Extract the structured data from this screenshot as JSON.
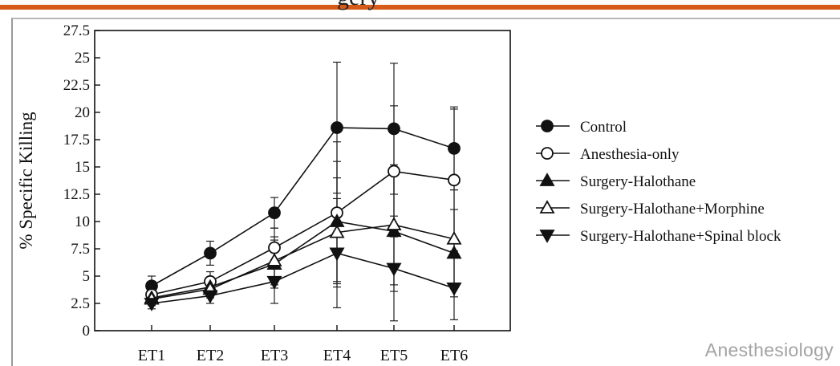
{
  "slide": {
    "title_fragment": "gery",
    "source": "Anesthesiology",
    "accent_color": "#d65a18"
  },
  "chart_data": {
    "type": "line",
    "title": "",
    "xlabel": "",
    "ylabel": "% Specific Killing",
    "categories": [
      "ET1",
      "ET2",
      "ET3",
      "ET4",
      "ET5",
      "ET6"
    ],
    "ylim": [
      0,
      27.5
    ],
    "yticks": [
      "0",
      "2.5",
      "5",
      "7.5",
      "10",
      "12.5",
      "15",
      "17.5",
      "20",
      "22.5",
      "25",
      "27.5"
    ],
    "grid": false,
    "legend_position": "right",
    "series": [
      {
        "name": "Control",
        "marker": "circle-filled",
        "values": [
          4.1,
          7.1,
          10.8,
          18.6,
          18.5,
          16.7
        ],
        "err": [
          0.9,
          1.1,
          1.4,
          6.0,
          6.0,
          3.8
        ]
      },
      {
        "name": "Anesthesia-only",
        "marker": "circle-open",
        "values": [
          3.3,
          4.5,
          7.6,
          10.8,
          14.6,
          13.8
        ],
        "err": [
          0.7,
          0.9,
          1.8,
          6.5,
          6.0,
          6.5
        ]
      },
      {
        "name": "Surgery-Halothane",
        "marker": "triangle-up-filled",
        "values": [
          3.0,
          4.0,
          6.1,
          10.0,
          9.1,
          7.1
        ],
        "err": [
          0.6,
          0.8,
          2.2,
          5.5,
          5.5,
          4.0
        ]
      },
      {
        "name": "Surgery-Halothane+Morphine",
        "marker": "triangle-up-open",
        "values": [
          2.9,
          3.8,
          6.4,
          9.0,
          9.7,
          8.4
        ],
        "err": [
          0.6,
          0.8,
          2.2,
          5.0,
          5.5,
          4.5
        ]
      },
      {
        "name": "Surgery-Halothane+Spinal block",
        "marker": "triangle-down-filled",
        "values": [
          2.5,
          3.2,
          4.5,
          7.1,
          5.7,
          3.9
        ],
        "err": [
          0.5,
          0.7,
          2.0,
          5.0,
          4.8,
          2.9
        ]
      }
    ]
  }
}
